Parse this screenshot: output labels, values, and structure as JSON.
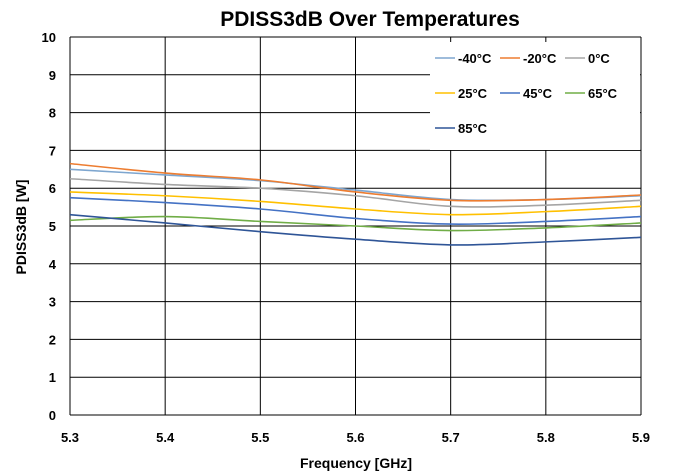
{
  "chart_data": {
    "type": "line",
    "title": "PDISS3dB Over Temperatures",
    "xlabel": "Frequency [GHz]",
    "ylabel": "PDISS3dB [W]",
    "xlim": [
      5.3,
      5.9
    ],
    "ylim": [
      0,
      10
    ],
    "x_ticks": [
      "5.3",
      "5.4",
      "5.5",
      "5.6",
      "5.7",
      "5.8",
      "5.9"
    ],
    "y_ticks": [
      "0",
      "1",
      "2",
      "3",
      "4",
      "5",
      "6",
      "7",
      "8",
      "9",
      "10"
    ],
    "grid": true,
    "legend_position": "top-right",
    "x": [
      5.3,
      5.4,
      5.5,
      5.6,
      5.7,
      5.8,
      5.9
    ],
    "series": [
      {
        "name": "-40°C",
        "color": "#7EA6CF",
        "values": [
          6.5,
          6.35,
          6.2,
          5.95,
          5.7,
          5.7,
          5.8
        ]
      },
      {
        "name": "-20°C",
        "color": "#ED7D31",
        "values": [
          6.65,
          6.4,
          6.22,
          5.9,
          5.68,
          5.7,
          5.82
        ]
      },
      {
        "name": "0°C",
        "color": "#A5A5A5",
        "values": [
          6.25,
          6.1,
          6.0,
          5.8,
          5.52,
          5.55,
          5.68
        ]
      },
      {
        "name": "25°C",
        "color": "#FFC000",
        "values": [
          5.9,
          5.8,
          5.65,
          5.45,
          5.3,
          5.38,
          5.52
        ]
      },
      {
        "name": "45°C",
        "color": "#4472C4",
        "values": [
          5.75,
          5.62,
          5.45,
          5.2,
          5.05,
          5.12,
          5.25
        ]
      },
      {
        "name": "65°C",
        "color": "#70AD47",
        "values": [
          5.15,
          5.25,
          5.12,
          5.0,
          4.88,
          4.95,
          5.08
        ]
      },
      {
        "name": "85°C",
        "color": "#2F5597",
        "values": [
          5.3,
          5.08,
          4.85,
          4.65,
          4.5,
          4.58,
          4.7
        ]
      }
    ]
  }
}
